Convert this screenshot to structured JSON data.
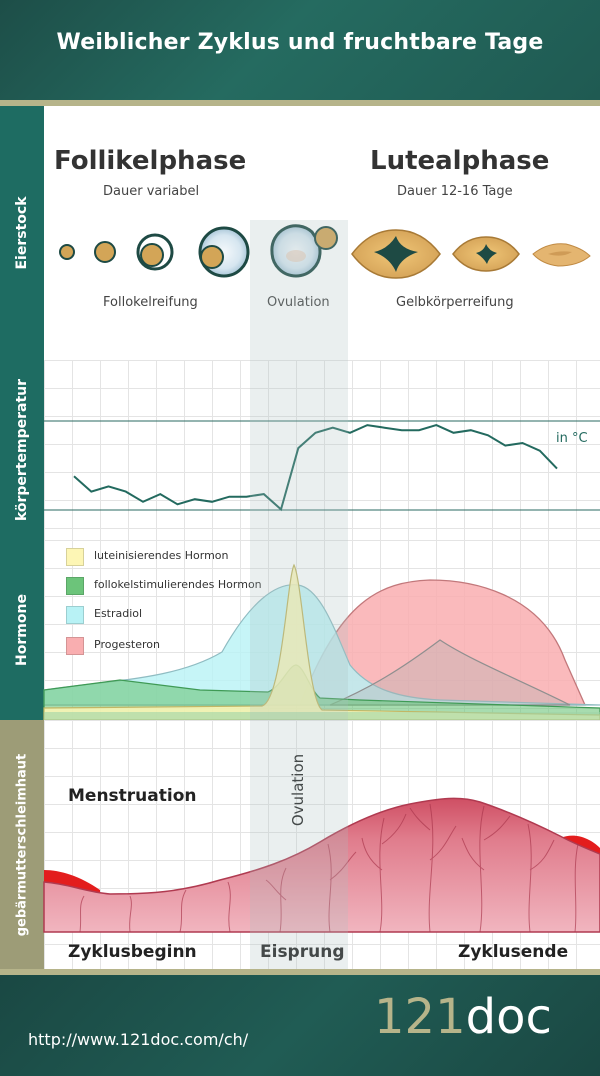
{
  "header": {
    "title": "Weiblicher Zyklus und fruchtbare Tage"
  },
  "sections": {
    "ovary": "Eierstock",
    "temperature": "körpertemperatur",
    "hormones": "Hormone",
    "endometrium": "gebärmutterschleimhaut"
  },
  "ovary": {
    "follicular_title": "Follikelphase",
    "follicular_sub": "Dauer variabel",
    "luteal_title": "Lutealphase",
    "luteal_sub": "Dauer 12-16 Tage",
    "caption_follicle": "Follokelreifung",
    "caption_ovulation": "Ovulation",
    "caption_corpus": "Gelbkörperreifung"
  },
  "temperature": {
    "unit": "in °C",
    "values": [
      14,
      8,
      10,
      8,
      4,
      7,
      3,
      5,
      4,
      6,
      6,
      7,
      1,
      25,
      31,
      33,
      31,
      34,
      33,
      32,
      32,
      34,
      31,
      32,
      30,
      26,
      27,
      24,
      17
    ]
  },
  "legend": [
    {
      "label": "luteinisierendes Hormon",
      "color": "#fdf6b5"
    },
    {
      "label": "follokelstimulierendes Hormon",
      "color": "#6cc47a"
    },
    {
      "label": "Estradiol",
      "color": "#b8f2f5"
    },
    {
      "label": "Progesteron",
      "color": "#f9aeb0"
    }
  ],
  "endometrium": {
    "menstruation": "Menstruation",
    "ovulation": "Ovulation"
  },
  "timeline": {
    "start": "Zyklusbeginn",
    "ovulation": "Eisprung",
    "end": "Zyklusende"
  },
  "footer": {
    "url": "http://www.121doc.com/ch/",
    "logo_number": "121",
    "logo_word": "doc"
  },
  "colors": {
    "header_bg": "#1f5a52",
    "sidebar_green": "#1e6c62",
    "sidebar_tan": "#9d9c77",
    "temperature_line": "#236a5f",
    "follicle": "#d3a557",
    "endometrium": "#d47584",
    "menstruation": "#e31d1d"
  }
}
